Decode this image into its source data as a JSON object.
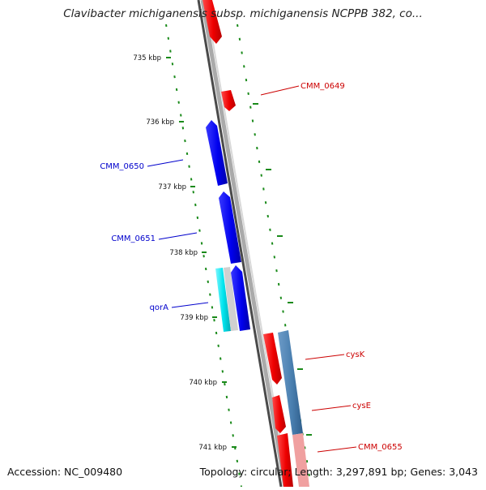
{
  "title": "Clavibacter michiganensis subsp. michiganensis NCPPB 382, co...",
  "accession": "Accession: NC_009480",
  "summary": "Topology: circular; Length: 3,297,891 bp; Genes: 3,043",
  "scale_labels": [
    "735 kbp",
    "736 kbp",
    "737 kbp",
    "738 kbp",
    "739 kbp",
    "740 kbp",
    "741 kbp"
  ],
  "gene_labels": {
    "cmm0649": "CMM_0649",
    "cmm0650": "CMM_0650",
    "cmm0651": "CMM_0651",
    "qora": "qorA",
    "cysk": "cysK",
    "cyse": "cysE",
    "cmm0655": "CMM_0655"
  },
  "colors": {
    "forward_gene": "#ee0000",
    "reverse_gene": "#0000ee",
    "forward_label": "#cc0000",
    "reverse_label": "#0000cc",
    "rna_cyan": "#00e5ee",
    "cds_steelblue": "#4a7fb0",
    "scale_ticks": "#1a8a1a",
    "backbone": "#888888"
  }
}
